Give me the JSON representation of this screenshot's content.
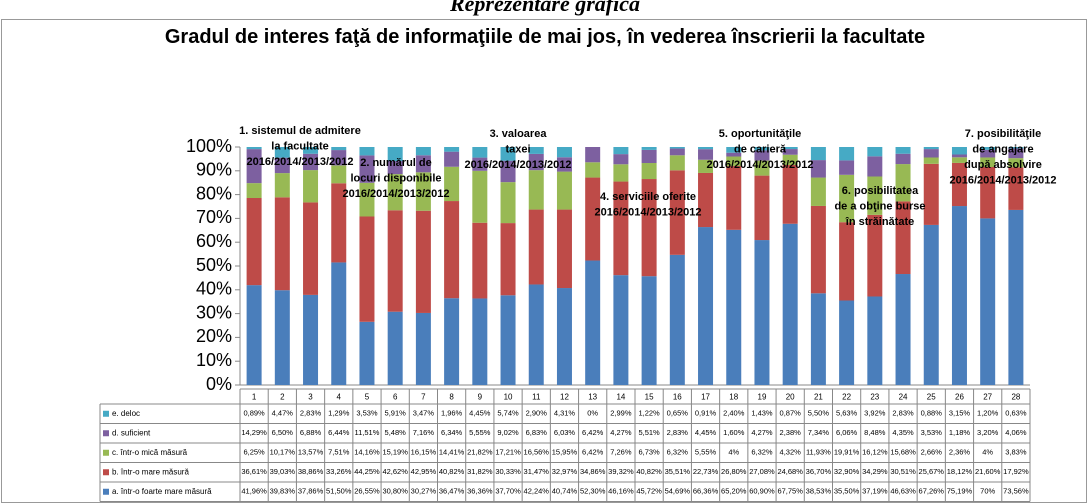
{
  "page_heading": "Reprezentare grafică",
  "chart_data": {
    "type": "percent_stacked_bar",
    "title": "Gradul de interes faţă de informaţiile de mai jos, în vederea înscrierii la facultate",
    "annotations": [
      {
        "lines": [
          "1. sistemul de admitere",
          "la facultate",
          "2016/2014/2013/2012"
        ]
      },
      {
        "lines": [
          "2. numărul de",
          "locuri disponibile",
          "2016/2014/2013/2012"
        ]
      },
      {
        "lines": [
          "3. valoarea",
          "taxei",
          "2016/2014/2013/2012"
        ]
      },
      {
        "lines": [
          "4. serviciile oferite",
          "2016/2014/2013/2012"
        ]
      },
      {
        "lines": [
          "5. oportunităţile",
          "de carieră",
          "2016/2014/2013/2012"
        ]
      },
      {
        "lines": [
          "6. posibilitatea",
          "de a obţine burse",
          "în străinătate"
        ]
      },
      {
        "lines": [
          "7. posibilităţile",
          "de angajare",
          "după absolvire",
          "2016/2014/2013/2012"
        ]
      }
    ],
    "categories": [
      "1",
      "2",
      "3",
      "4",
      "5",
      "6",
      "7",
      "8",
      "9",
      "10",
      "11",
      "12",
      "13",
      "14",
      "15",
      "16",
      "17",
      "18",
      "19",
      "20",
      "21",
      "22",
      "23",
      "24",
      "25",
      "26",
      "27",
      "28"
    ],
    "ylim": [
      0,
      100
    ],
    "yticks": [
      {
        "value": 0,
        "label": "0%"
      },
      {
        "value": 10,
        "label": "10%"
      },
      {
        "value": 20,
        "label": "20%"
      },
      {
        "value": 30,
        "label": "30%"
      },
      {
        "value": 40,
        "label": "40%"
      },
      {
        "value": 50,
        "label": "50%"
      },
      {
        "value": 60,
        "label": "60%"
      },
      {
        "value": 70,
        "label": "70%"
      },
      {
        "value": 80,
        "label": "80%"
      },
      {
        "value": 90,
        "label": "90%"
      },
      {
        "value": 100,
        "label": "100%"
      }
    ],
    "grid": false,
    "series": [
      {
        "name": "e. deloc",
        "color": "#46aac5",
        "values": [
          0.89,
          4.47,
          2.83,
          1.29,
          3.53,
          5.91,
          3.47,
          1.96,
          4.45,
          5.74,
          2.9,
          4.31,
          0,
          2.99,
          1.22,
          0.65,
          0.91,
          2.4,
          1.43,
          0.87,
          5.5,
          5.63,
          3.92,
          2.83,
          0.88,
          3.15,
          1.2,
          0.63
        ],
        "value_labels": [
          "0,89%",
          "4,47%",
          "2,83%",
          "1,29%",
          "3,53%",
          "5,91%",
          "3,47%",
          "1,96%",
          "4,45%",
          "5,74%",
          "2,90%",
          "4,31%",
          "0%",
          "2,99%",
          "1,22%",
          "0,65%",
          "0,91%",
          "2,40%",
          "1,43%",
          "0,87%",
          "5,50%",
          "5,63%",
          "3,92%",
          "2,83%",
          "0,88%",
          "3,15%",
          "1,20%",
          "0,63%"
        ]
      },
      {
        "name": "d. suficient",
        "color": "#7d60a0",
        "values": [
          14.29,
          6.5,
          6.88,
          6.44,
          11.51,
          5.48,
          7.16,
          6.34,
          5.55,
          9.02,
          6.83,
          6.03,
          6.42,
          4.27,
          5.51,
          2.83,
          4.45,
          1.6,
          4.27,
          2.38,
          7.34,
          6.06,
          8.48,
          4.35,
          3.53,
          1.18,
          3.2,
          4.06
        ],
        "value_labels": [
          "14,29%",
          "6,50%",
          "6,88%",
          "6,44%",
          "11,51%",
          "5,48%",
          "7,16%",
          "6,34%",
          "5,55%",
          "9,02%",
          "6,83%",
          "6,03%",
          "6,42%",
          "4,27%",
          "5,51%",
          "2,83%",
          "4,45%",
          "1,60%",
          "4,27%",
          "2,38%",
          "7,34%",
          "6,06%",
          "8,48%",
          "4,35%",
          "3,53%",
          "1,18%",
          "3,20%",
          "4,06%"
        ]
      },
      {
        "name": "c. într-o mică măsură",
        "color": "#98b954",
        "values": [
          6.25,
          10.17,
          13.57,
          7.51,
          14.16,
          15.19,
          16.15,
          14.41,
          21.82,
          17.21,
          16.56,
          15.95,
          6.42,
          7.26,
          6.73,
          6.32,
          5.55,
          4,
          6.32,
          4.32,
          11.93,
          19.91,
          16.12,
          15.68,
          2.66,
          2.36,
          4,
          3.83
        ],
        "value_labels": [
          "6,25%",
          "10,17%",
          "13,57%",
          "7,51%",
          "14,16%",
          "15,19%",
          "16,15%",
          "14,41%",
          "21,82%",
          "17,21%",
          "16,56%",
          "15,95%",
          "6,42%",
          "7,26%",
          "6,73%",
          "6,32%",
          "5,55%",
          "4%",
          "6,32%",
          "4,32%",
          "11,93%",
          "19,91%",
          "16,12%",
          "15,68%",
          "2,66%",
          "2,36%",
          "4%",
          "3,83%"
        ]
      },
      {
        "name": "b. într-o  mare măsură",
        "color": "#be4b48",
        "values": [
          36.61,
          39.03,
          38.86,
          33.26,
          44.25,
          42.62,
          42.95,
          40.82,
          31.82,
          30.33,
          31.47,
          32.97,
          34.86,
          39.32,
          40.82,
          35.51,
          22.73,
          26.8,
          27.08,
          24.68,
          36.7,
          32.9,
          34.29,
          30.51,
          25.67,
          18.12,
          21.6,
          17.92
        ],
        "value_labels": [
          "36,61%",
          "39,03%",
          "38,86%",
          "33,26%",
          "44,25%",
          "42,62%",
          "42,95%",
          "40,82%",
          "31,82%",
          "30,33%",
          "31,47%",
          "32,97%",
          "34,86%",
          "39,32%",
          "40,82%",
          "35,51%",
          "22,73%",
          "26,80%",
          "27,08%",
          "24,68%",
          "36,70%",
          "32,90%",
          "34,29%",
          "30,51%",
          "25,67%",
          "18,12%",
          "21,60%",
          "17,92%"
        ]
      },
      {
        "name": "a. într-o foarte mare măsură",
        "color": "#4a7ebb",
        "values": [
          41.96,
          39.83,
          37.86,
          51.5,
          26.55,
          30.8,
          30.27,
          36.47,
          36.36,
          37.7,
          42.24,
          40.74,
          52.3,
          46.16,
          45.72,
          54.69,
          66.36,
          65.2,
          60.9,
          67.75,
          38.53,
          35.5,
          37.19,
          46.63,
          67.26,
          75.19,
          70,
          73.56
        ],
        "value_labels": [
          "41,96%",
          "39,83%",
          "37,86%",
          "51,50%",
          "26,55%",
          "30,80%",
          "30,27%",
          "36,47%",
          "36,36%",
          "37,70%",
          "42,24%",
          "40,74%",
          "52,30%",
          "46,16%",
          "45,72%",
          "54,69%",
          "66,36%",
          "65,20%",
          "60,90%",
          "67,75%",
          "38,53%",
          "35,50%",
          "37,19%",
          "46,63%",
          "67,26%",
          "75,19%",
          "70%",
          "73,56%"
        ]
      }
    ]
  }
}
